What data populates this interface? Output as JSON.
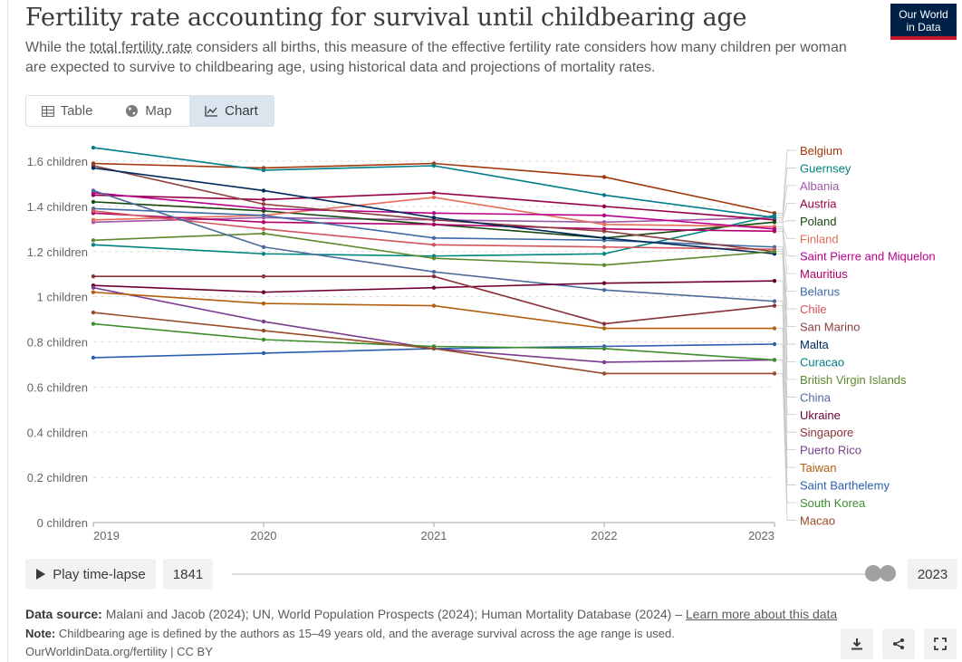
{
  "title": "Fertility rate accounting for survival until childbearing age",
  "subtitle_pre": "While the ",
  "subtitle_link": "total fertility rate",
  "subtitle_post": " considers all births, this measure of the effective fertility rate considers how many children per woman are expected to survive to childbearing age, using historical data and projections of mortality rates.",
  "logo": {
    "line1": "Our World",
    "line2": "in Data"
  },
  "tabs": [
    {
      "label": "Table",
      "icon": "table-icon"
    },
    {
      "label": "Map",
      "icon": "globe-icon"
    },
    {
      "label": "Chart",
      "icon": "line-chart-icon",
      "active": true
    }
  ],
  "timeline": {
    "play_label": "Play time-lapse",
    "start_year": "1841",
    "end_year": "2023"
  },
  "footer": {
    "source_label": "Data source:",
    "source_text": " Malani and Jacob (2024); UN, World Population Prospects (2024); Human Mortality Database (2024) – ",
    "source_link": "Learn more about this data",
    "note_label": "Note:",
    "note_text": " Childbearing age is defined by the authors as 15–49 years old, and the average survival across the age range is used.",
    "credit": "OurWorldinData.org/fertility | CC BY"
  },
  "buttons": {
    "download_icon": "download-icon",
    "share_icon": "share-icon",
    "fullscreen_icon": "fullscreen-icon"
  },
  "chart_data": {
    "type": "line",
    "x": [
      2019,
      2020,
      2021,
      2022,
      2023
    ],
    "x_tick_labels": [
      "2019",
      "2020",
      "2021",
      "2022",
      "2023"
    ],
    "y_ticks": [
      0,
      0.2,
      0.4,
      0.6,
      0.8,
      1,
      1.2,
      1.4,
      1.6
    ],
    "y_tick_labels": [
      "0 children",
      "0.2 children",
      "0.4 children",
      "0.6 children",
      "0.8 children",
      "1 children",
      "1.2 children",
      "1.4 children",
      "1.6 children"
    ],
    "ylim": [
      0,
      1.6
    ],
    "grid": true,
    "legend_placement": "right",
    "series": [
      {
        "name": "Belgium",
        "color": "#a2380a",
        "values": [
          1.59,
          1.57,
          1.59,
          1.53,
          1.37
        ]
      },
      {
        "name": "Guernsey",
        "color": "#00847e",
        "values": [
          1.23,
          1.19,
          1.18,
          1.19,
          1.36
        ]
      },
      {
        "name": "Albania",
        "color": "#a057a8",
        "values": [
          1.33,
          1.35,
          1.34,
          1.33,
          1.35
        ]
      },
      {
        "name": "Austria",
        "color": "#970046",
        "values": [
          1.45,
          1.43,
          1.46,
          1.4,
          1.34
        ]
      },
      {
        "name": "Poland",
        "color": "#18470f",
        "values": [
          1.42,
          1.38,
          1.32,
          1.26,
          1.33
        ]
      },
      {
        "name": "Finland",
        "color": "#e56e5a",
        "values": [
          1.34,
          1.36,
          1.44,
          1.32,
          1.31
        ]
      },
      {
        "name": "Saint Pierre and Miquelon",
        "color": "#b8008d",
        "values": [
          1.46,
          1.39,
          1.37,
          1.36,
          1.3
        ]
      },
      {
        "name": "Mauritius",
        "color": "#b0006b",
        "values": [
          1.37,
          1.33,
          1.32,
          1.3,
          1.29
        ]
      },
      {
        "name": "Belarus",
        "color": "#3e6aa6",
        "values": [
          1.39,
          1.36,
          1.26,
          1.25,
          1.22
        ]
      },
      {
        "name": "Chile",
        "color": "#d2555b",
        "values": [
          1.38,
          1.3,
          1.23,
          1.22,
          1.21
        ]
      },
      {
        "name": "San Marino",
        "color": "#8c3e3e",
        "values": [
          1.58,
          1.41,
          1.34,
          1.29,
          1.2
        ]
      },
      {
        "name": "Malta",
        "color": "#00295b",
        "values": [
          1.57,
          1.47,
          1.35,
          1.26,
          1.19
        ]
      },
      {
        "name": "Curacao",
        "color": "#007c8a",
        "values": [
          1.66,
          1.56,
          1.58,
          1.45,
          1.35
        ]
      },
      {
        "name": "British Virgin Islands",
        "color": "#5b8a2c",
        "values": [
          1.25,
          1.28,
          1.17,
          1.14,
          1.2
        ]
      },
      {
        "name": "China",
        "color": "#4c6a9c",
        "values": [
          1.47,
          1.22,
          1.11,
          1.03,
          0.98
        ]
      },
      {
        "name": "Ukraine",
        "color": "#6d0032",
        "values": [
          1.05,
          1.02,
          1.04,
          1.06,
          1.07
        ]
      },
      {
        "name": "Singapore",
        "color": "#883039",
        "values": [
          1.09,
          1.09,
          1.09,
          0.88,
          0.96
        ]
      },
      {
        "name": "Puerto Rico",
        "color": "#7a3d8f",
        "values": [
          1.04,
          0.89,
          0.77,
          0.71,
          0.72
        ]
      },
      {
        "name": "Taiwan",
        "color": "#b35f0e",
        "values": [
          1.02,
          0.97,
          0.96,
          0.86,
          0.86
        ]
      },
      {
        "name": "Saint Barthelemy",
        "color": "#2b5fae",
        "values": [
          0.73,
          0.75,
          0.77,
          0.78,
          0.79
        ]
      },
      {
        "name": "South Korea",
        "color": "#3d8d2d",
        "values": [
          0.88,
          0.81,
          0.78,
          0.77,
          0.72
        ]
      },
      {
        "name": "Macao",
        "color": "#9a4a27",
        "values": [
          0.93,
          0.85,
          0.77,
          0.66,
          0.66
        ]
      }
    ]
  }
}
